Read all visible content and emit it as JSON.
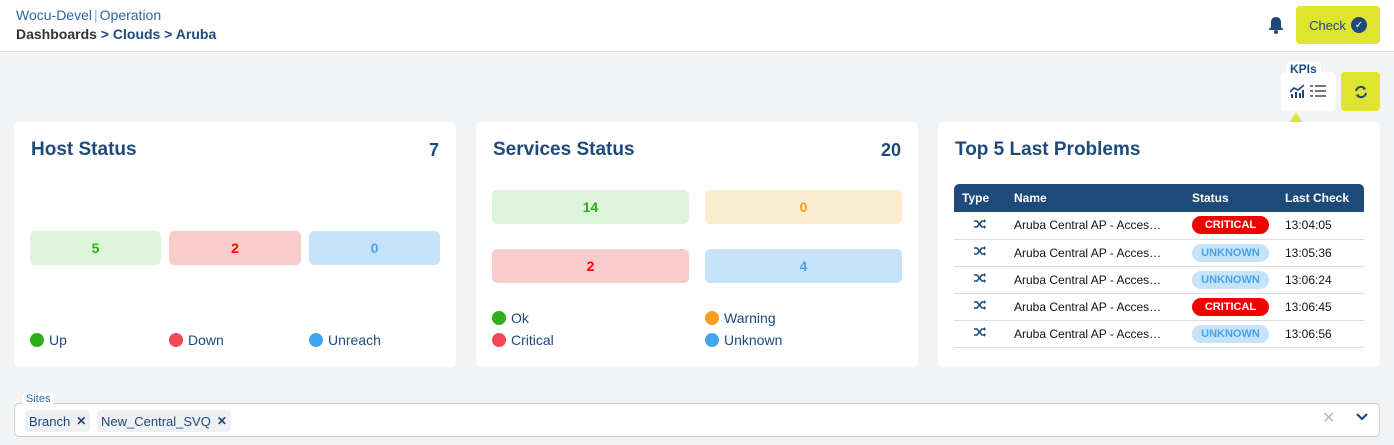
{
  "header": {
    "app": "Wocu-Devel",
    "section": "Operation",
    "breadcrumb": [
      "Dashboards",
      "Clouds",
      "Aruba"
    ],
    "check_label": "Check"
  },
  "toolbar": {
    "kpis_label": "KPIs"
  },
  "host_status": {
    "title": "Host Status",
    "total": "7",
    "tiles": [
      {
        "label": "Up",
        "value": "5",
        "color": "#2fad1a"
      },
      {
        "label": "Down",
        "value": "2",
        "color": "#f44857"
      },
      {
        "label": "Unreach",
        "value": "0",
        "color": "#42a5f0"
      }
    ]
  },
  "services_status": {
    "title": "Services Status",
    "total": "20",
    "tiles": [
      {
        "label": "Ok",
        "value": "14",
        "color": "#2fad1a"
      },
      {
        "label": "Warning",
        "value": "0",
        "color": "#f5a01a"
      },
      {
        "label": "Critical",
        "value": "2",
        "color": "#f44857"
      },
      {
        "label": "Unknown",
        "value": "4",
        "color": "#42a5f0"
      }
    ]
  },
  "problems": {
    "title": "Top 5 Last Problems",
    "columns": [
      "Type",
      "Name",
      "Status",
      "Last Check"
    ],
    "rows": [
      {
        "type": "shuffle-icon",
        "name": "Aruba Central AP - Acces…",
        "status": "CRITICAL",
        "last_check": "13:04:05"
      },
      {
        "type": "shuffle-icon",
        "name": "Aruba Central AP - Acces…",
        "status": "UNKNOWN",
        "last_check": "13:05:36"
      },
      {
        "type": "shuffle-icon",
        "name": "Aruba Central AP - Acces…",
        "status": "UNKNOWN",
        "last_check": "13:06:24"
      },
      {
        "type": "shuffle-icon",
        "name": "Aruba Central AP - Acces…",
        "status": "CRITICAL",
        "last_check": "13:06:45"
      },
      {
        "type": "shuffle-icon",
        "name": "Aruba Central AP - Acces…",
        "status": "UNKNOWN",
        "last_check": "13:06:56"
      }
    ]
  },
  "sites": {
    "label": "Sites",
    "chips": [
      "Branch",
      "New_Central_SVQ"
    ]
  }
}
